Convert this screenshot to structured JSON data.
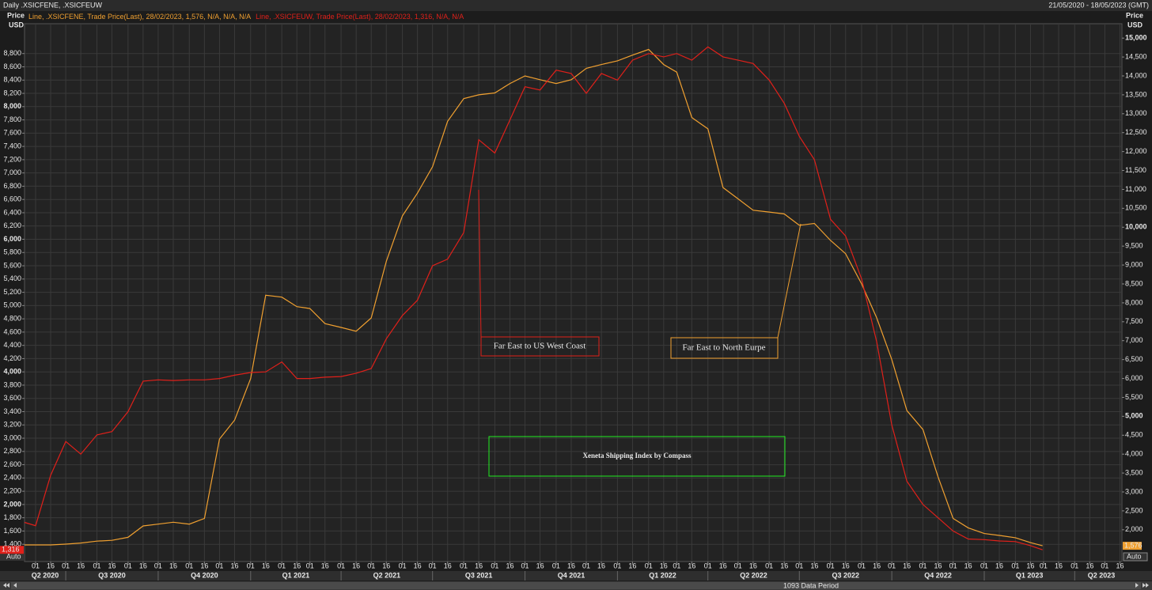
{
  "chart_data": {
    "type": "line",
    "header_left": "Daily .XSICFENE, .XSICFEUW",
    "header_right": "21/05/2020 - 18/05/2023 (GMT)",
    "title": "Xeneta Shipping Index by Compass",
    "y_label": "Price",
    "y_unit": "USD",
    "auto": "Auto",
    "footer": "1093 Data Period",
    "grid": true,
    "annotations": [
      {
        "text": "Far East to US West Coast",
        "color": "#e0201a"
      },
      {
        "text": "Far East to North Eurpe",
        "color": "#f0a030"
      }
    ],
    "title_color": "#22ee22",
    "xlim": [
      "2020-05-21",
      "2023-05-18"
    ],
    "x": [
      "2020-05-21",
      "2020-06-01",
      "2020-06-16",
      "2020-07-01",
      "2020-07-16",
      "2020-08-01",
      "2020-08-16",
      "2020-09-01",
      "2020-09-16",
      "2020-10-01",
      "2020-10-16",
      "2020-11-01",
      "2020-11-16",
      "2020-12-01",
      "2020-12-16",
      "2021-01-01",
      "2021-01-16",
      "2021-02-01",
      "2021-02-16",
      "2021-03-01",
      "2021-03-16",
      "2021-04-01",
      "2021-04-16",
      "2021-05-01",
      "2021-05-16",
      "2021-06-01",
      "2021-06-16",
      "2021-07-01",
      "2021-07-16",
      "2021-08-01",
      "2021-08-16",
      "2021-09-01",
      "2021-09-16",
      "2021-10-01",
      "2021-10-16",
      "2021-11-01",
      "2021-11-16",
      "2021-12-01",
      "2021-12-16",
      "2022-01-01",
      "2022-01-16",
      "2022-02-01",
      "2022-02-16",
      "2022-03-01",
      "2022-03-16",
      "2022-04-01",
      "2022-04-16",
      "2022-05-01",
      "2022-05-16",
      "2022-06-01",
      "2022-06-16",
      "2022-07-01",
      "2022-07-16",
      "2022-08-01",
      "2022-08-16",
      "2022-09-01",
      "2022-09-16",
      "2022-10-01",
      "2022-10-16",
      "2022-11-01",
      "2022-11-16",
      "2022-12-01",
      "2022-12-16",
      "2023-01-01",
      "2023-01-16",
      "2023-02-01",
      "2023-02-16",
      "2023-02-28"
    ],
    "series": [
      {
        "name": "Line, .XSICFENE, Trade Price(Last), 28/02/2023, 1,576, N/A, N/A, N/A",
        "color": "#f0a030",
        "axis": "y2",
        "values": [
          1600,
          1600,
          1600,
          1620,
          1650,
          1700,
          1720,
          1800,
          2100,
          2150,
          2200,
          2150,
          2300,
          4400,
          4900,
          6000,
          8200,
          8150,
          7900,
          7850,
          7450,
          7350,
          7250,
          7600,
          9100,
          10300,
          10900,
          11600,
          12800,
          13400,
          13500,
          13550,
          13800,
          14000,
          13900,
          13800,
          13900,
          14200,
          14300,
          14400,
          14550,
          14700,
          14300,
          14100,
          12900,
          12600,
          11050,
          10750,
          10450,
          10400,
          10350,
          10050,
          10100,
          9650,
          9300,
          8500,
          7600,
          6500,
          5150,
          4650,
          3400,
          2300,
          2050,
          1900,
          1850,
          1790,
          1660,
          1576
        ],
        "value_labels": [
          null,
          null,
          null,
          null,
          null,
          null,
          null,
          null,
          null,
          null,
          null,
          null,
          null,
          null,
          null,
          null,
          null,
          null,
          null,
          null,
          null,
          null,
          null,
          null,
          null,
          null,
          null,
          null,
          null,
          null,
          null,
          null,
          null,
          null,
          null,
          null,
          null,
          null,
          null,
          null,
          null,
          null,
          null,
          null,
          null,
          null,
          null,
          null,
          null,
          null,
          null,
          null,
          null,
          null,
          null,
          null,
          null,
          null,
          null,
          null,
          null,
          null,
          null,
          null,
          null,
          null,
          null,
          "1,576"
        ]
      },
      {
        "name": "Line, .XSICFEUW, Trade Price(Last), 28/02/2023, 1,316, N/A, N/A",
        "color": "#e0201a",
        "axis": "y",
        "values": [
          1730,
          1680,
          2440,
          2950,
          2760,
          3050,
          3100,
          3400,
          3860,
          3880,
          3870,
          3880,
          3880,
          3900,
          3950,
          3990,
          4000,
          4150,
          3900,
          3900,
          3920,
          3930,
          3980,
          4050,
          4500,
          4850,
          5080,
          5600,
          5700,
          6100,
          7500,
          7300,
          7800,
          8300,
          8250,
          8550,
          8500,
          8200,
          8500,
          8400,
          8700,
          8800,
          8750,
          8800,
          8700,
          8900,
          8750,
          8700,
          8650,
          8400,
          8050,
          7550,
          7200,
          6300,
          6050,
          5400,
          4450,
          3200,
          2350,
          2000,
          1800,
          1600,
          1480,
          1470,
          1450,
          1440,
          1380,
          1316
        ],
        "value_labels": [
          null,
          null,
          null,
          null,
          null,
          null,
          null,
          null,
          null,
          null,
          null,
          null,
          null,
          null,
          null,
          null,
          null,
          null,
          null,
          null,
          null,
          null,
          null,
          null,
          null,
          null,
          null,
          null,
          null,
          null,
          null,
          null,
          null,
          null,
          null,
          null,
          null,
          null,
          null,
          null,
          null,
          null,
          null,
          null,
          null,
          null,
          null,
          null,
          null,
          null,
          null,
          null,
          null,
          null,
          null,
          null,
          null,
          null,
          null,
          null,
          null,
          null,
          null,
          null,
          null,
          null,
          null,
          "1,316"
        ]
      }
    ],
    "ylim": [
      1140,
      9250
    ],
    "yticks": [
      {
        "value": 1400,
        "label": "1,400"
      },
      {
        "value": 1600,
        "label": "1,600"
      },
      {
        "value": 1800,
        "label": "1,800"
      },
      {
        "value": 2000,
        "label": "2,000"
      },
      {
        "value": 2200,
        "label": "2,200"
      },
      {
        "value": 2400,
        "label": "2,400"
      },
      {
        "value": 2600,
        "label": "2,600"
      },
      {
        "value": 2800,
        "label": "2,800"
      },
      {
        "value": 3000,
        "label": "3,000"
      },
      {
        "value": 3200,
        "label": "3,200"
      },
      {
        "value": 3400,
        "label": "3,400"
      },
      {
        "value": 3600,
        "label": "3,600"
      },
      {
        "value": 3800,
        "label": "3,800"
      },
      {
        "value": 4000,
        "label": "4,000"
      },
      {
        "value": 4200,
        "label": "4,200"
      },
      {
        "value": 4400,
        "label": "4,400"
      },
      {
        "value": 4600,
        "label": "4,600"
      },
      {
        "value": 4800,
        "label": "4,800"
      },
      {
        "value": 5000,
        "label": "5,000"
      },
      {
        "value": 5200,
        "label": "5,200"
      },
      {
        "value": 5400,
        "label": "5,400"
      },
      {
        "value": 5600,
        "label": "5,600"
      },
      {
        "value": 5800,
        "label": "5,800"
      },
      {
        "value": 6000,
        "label": "6,000"
      },
      {
        "value": 6200,
        "label": "6,200"
      },
      {
        "value": 6400,
        "label": "6,400"
      },
      {
        "value": 6600,
        "label": "6,600"
      },
      {
        "value": 6800,
        "label": "6,800"
      },
      {
        "value": 7000,
        "label": "7,000"
      },
      {
        "value": 7200,
        "label": "7,200"
      },
      {
        "value": 7400,
        "label": "7,400"
      },
      {
        "value": 7600,
        "label": "7,600"
      },
      {
        "value": 7800,
        "label": "7,800"
      },
      {
        "value": 8000,
        "label": "8,000"
      },
      {
        "value": 8200,
        "label": "8,200"
      },
      {
        "value": 8400,
        "label": "8,400"
      },
      {
        "value": 8600,
        "label": "8,600"
      },
      {
        "value": 8800,
        "label": "8,800"
      }
    ],
    "y2lim": [
      1160,
      15380
    ],
    "y2ticks": [
      {
        "value": 2000,
        "label": "2,000"
      },
      {
        "value": 2500,
        "label": "2,500"
      },
      {
        "value": 3000,
        "label": "3,000"
      },
      {
        "value": 3500,
        "label": "3,500"
      },
      {
        "value": 4000,
        "label": "4,000"
      },
      {
        "value": 4500,
        "label": "4,500"
      },
      {
        "value": 5000,
        "label": "5,000"
      },
      {
        "value": 5500,
        "label": "5,500"
      },
      {
        "value": 6000,
        "label": "6,000"
      },
      {
        "value": 6500,
        "label": "6,500"
      },
      {
        "value": 7000,
        "label": "7,000"
      },
      {
        "value": 7500,
        "label": "7,500"
      },
      {
        "value": 8000,
        "label": "8,000"
      },
      {
        "value": 8500,
        "label": "8,500"
      },
      {
        "value": 9000,
        "label": "9,000"
      },
      {
        "value": 9500,
        "label": "9,500"
      },
      {
        "value": 10000,
        "label": "10,000"
      },
      {
        "value": 10500,
        "label": "10,500"
      },
      {
        "value": 11000,
        "label": "11,000"
      },
      {
        "value": 11500,
        "label": "11,500"
      },
      {
        "value": 12000,
        "label": "12,000"
      },
      {
        "value": 12500,
        "label": "12,500"
      },
      {
        "value": 13000,
        "label": "13,000"
      },
      {
        "value": 13500,
        "label": "13,500"
      },
      {
        "value": 14000,
        "label": "14,000"
      },
      {
        "value": 14500,
        "label": "14,500"
      },
      {
        "value": 15000,
        "label": "15,000"
      }
    ],
    "xticks": [
      {
        "value": "2020-06-01",
        "label": "01"
      },
      {
        "value": "2020-06-16",
        "label": "16"
      },
      {
        "value": "2020-07-01",
        "label": "01"
      },
      {
        "value": "2020-07-16",
        "label": "16"
      },
      {
        "value": "2020-08-01",
        "label": "01"
      },
      {
        "value": "2020-08-16",
        "label": "16"
      },
      {
        "value": "2020-09-01",
        "label": "01"
      },
      {
        "value": "2020-09-16",
        "label": "16"
      },
      {
        "value": "2020-10-01",
        "label": "01"
      },
      {
        "value": "2020-10-16",
        "label": "16"
      },
      {
        "value": "2020-11-01",
        "label": "01"
      },
      {
        "value": "2020-11-16",
        "label": "16"
      },
      {
        "value": "2020-12-01",
        "label": "01"
      },
      {
        "value": "2020-12-16",
        "label": "16"
      },
      {
        "value": "2021-01-01",
        "label": "01"
      },
      {
        "value": "2021-01-16",
        "label": "16"
      },
      {
        "value": "2021-02-01",
        "label": "01"
      },
      {
        "value": "2021-02-16",
        "label": "16"
      },
      {
        "value": "2021-03-01",
        "label": "01"
      },
      {
        "value": "2021-03-16",
        "label": "16"
      },
      {
        "value": "2021-04-01",
        "label": "01"
      },
      {
        "value": "2021-04-16",
        "label": "16"
      },
      {
        "value": "2021-05-01",
        "label": "01"
      },
      {
        "value": "2021-05-16",
        "label": "16"
      },
      {
        "value": "2021-06-01",
        "label": "01"
      },
      {
        "value": "2021-06-16",
        "label": "16"
      },
      {
        "value": "2021-07-01",
        "label": "01"
      },
      {
        "value": "2021-07-16",
        "label": "16"
      },
      {
        "value": "2021-08-01",
        "label": "01"
      },
      {
        "value": "2021-08-16",
        "label": "16"
      },
      {
        "value": "2021-09-01",
        "label": "01"
      },
      {
        "value": "2021-09-16",
        "label": "16"
      },
      {
        "value": "2021-10-01",
        "label": "01"
      },
      {
        "value": "2021-10-16",
        "label": "16"
      },
      {
        "value": "2021-11-01",
        "label": "01"
      },
      {
        "value": "2021-11-16",
        "label": "16"
      },
      {
        "value": "2021-12-01",
        "label": "01"
      },
      {
        "value": "2021-12-16",
        "label": "16"
      },
      {
        "value": "2022-01-01",
        "label": "01"
      },
      {
        "value": "2022-01-16",
        "label": "16"
      },
      {
        "value": "2022-02-01",
        "label": "01"
      },
      {
        "value": "2022-02-16",
        "label": "16"
      },
      {
        "value": "2022-03-01",
        "label": "01"
      },
      {
        "value": "2022-03-16",
        "label": "16"
      },
      {
        "value": "2022-04-01",
        "label": "01"
      },
      {
        "value": "2022-04-16",
        "label": "16"
      },
      {
        "value": "2022-05-01",
        "label": "01"
      },
      {
        "value": "2022-05-16",
        "label": "16"
      },
      {
        "value": "2022-06-01",
        "label": "01"
      },
      {
        "value": "2022-06-16",
        "label": "16"
      },
      {
        "value": "2022-07-01",
        "label": "01"
      },
      {
        "value": "2022-07-16",
        "label": "16"
      },
      {
        "value": "2022-08-01",
        "label": "01"
      },
      {
        "value": "2022-08-16",
        "label": "16"
      },
      {
        "value": "2022-09-01",
        "label": "01"
      },
      {
        "value": "2022-09-16",
        "label": "16"
      },
      {
        "value": "2022-10-01",
        "label": "01"
      },
      {
        "value": "2022-10-16",
        "label": "16"
      },
      {
        "value": "2022-11-01",
        "label": "01"
      },
      {
        "value": "2022-11-16",
        "label": "16"
      },
      {
        "value": "2022-12-01",
        "label": "01"
      },
      {
        "value": "2022-12-16",
        "label": "16"
      },
      {
        "value": "2023-01-01",
        "label": "01"
      },
      {
        "value": "2023-01-16",
        "label": "16"
      },
      {
        "value": "2023-02-01",
        "label": "01"
      },
      {
        "value": "2023-02-16",
        "label": "16"
      },
      {
        "value": "2023-03-01",
        "label": "01"
      },
      {
        "value": "2023-03-16",
        "label": "16"
      },
      {
        "value": "2023-04-01",
        "label": "01"
      },
      {
        "value": "2023-04-16",
        "label": "16"
      },
      {
        "value": "2023-05-01",
        "label": "01"
      },
      {
        "value": "2023-05-16",
        "label": "16"
      }
    ],
    "quarters": [
      {
        "value": "2020-04-01",
        "label": "Q2 2020"
      },
      {
        "value": "2020-07-01",
        "label": "Q3 2020"
      },
      {
        "value": "2020-10-01",
        "label": "Q4 2020"
      },
      {
        "value": "2021-01-01",
        "label": "Q1 2021"
      },
      {
        "value": "2021-04-01",
        "label": "Q2 2021"
      },
      {
        "value": "2021-07-01",
        "label": "Q3 2021"
      },
      {
        "value": "2021-10-01",
        "label": "Q4 2021"
      },
      {
        "value": "2022-01-01",
        "label": "Q1 2022"
      },
      {
        "value": "2022-04-01",
        "label": "Q2 2022"
      },
      {
        "value": "2022-07-01",
        "label": "Q3 2022"
      },
      {
        "value": "2022-10-01",
        "label": "Q4 2022"
      },
      {
        "value": "2023-01-01",
        "label": "Q1 2023"
      },
      {
        "value": "2023-04-01",
        "label": "Q2 2023"
      }
    ]
  }
}
